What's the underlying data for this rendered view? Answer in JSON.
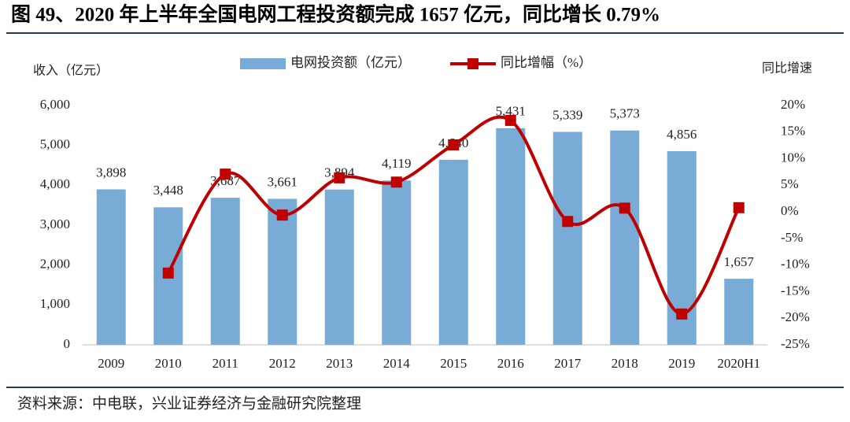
{
  "chart_data": {
    "type": "bar",
    "title": "图 49、2020 年上半年全国电网工程投资额完成 1657 亿元，同比增长 0.79%",
    "y_label": "收入（亿元）",
    "y2_label": "同比增速",
    "source": "资料来源：中电联，兴业证券经济与金融研究院整理",
    "categories": [
      "2009",
      "2010",
      "2011",
      "2012",
      "2013",
      "2014",
      "2015",
      "2016",
      "2017",
      "2018",
      "2019",
      "2020H1"
    ],
    "series": [
      {
        "name": "电网投资额（亿元）",
        "type": "bar",
        "color": "#78acd6",
        "values": [
          3898,
          3448,
          3687,
          3661,
          3894,
          4119,
          4640,
          5431,
          5339,
          5373,
          4856,
          1657
        ],
        "value_labels": [
          "3,898",
          "3,448",
          "3,687",
          "3,661",
          "3,894",
          "4,119",
          "4,640",
          "5,431",
          "5,339",
          "5,373",
          "4,856",
          "1,657"
        ]
      },
      {
        "name": "同比增幅（%）",
        "type": "line",
        "axis": "y2",
        "color": "#c00000",
        "values": [
          null,
          -11.5,
          7.1,
          -0.6,
          6.4,
          5.6,
          12.6,
          17.2,
          -1.8,
          0.7,
          -19.2,
          0.79
        ]
      }
    ],
    "ylim": [
      0,
      6000
    ],
    "yticks": [
      0,
      {
        "value": 1000,
        "label": "1,000"
      },
      {
        "value": 2000,
        "label": "2,000"
      },
      {
        "value": 3000,
        "label": "3,000"
      },
      {
        "value": 4000,
        "label": "4,000"
      },
      {
        "value": 5000,
        "label": "5,000"
      },
      {
        "value": 6000,
        "label": "6,000"
      }
    ],
    "y2lim": [
      -25,
      20
    ],
    "y2ticks": [
      {
        "value": -25,
        "label": "-25%"
      },
      {
        "value": -20,
        "label": "-20%"
      },
      {
        "value": -15,
        "label": "-15%"
      },
      {
        "value": -10,
        "label": "-10%"
      },
      {
        "value": -5,
        "label": "-5%"
      },
      {
        "value": 0,
        "label": "0%"
      },
      {
        "value": 5,
        "label": "5%"
      },
      {
        "value": 10,
        "label": "10%"
      },
      {
        "value": 15,
        "label": "15%"
      },
      {
        "value": 20,
        "label": "20%"
      }
    ],
    "legend": "top"
  }
}
